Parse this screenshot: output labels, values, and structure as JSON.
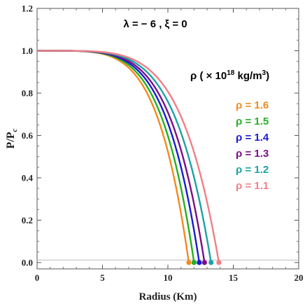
{
  "chart_data": {
    "type": "line",
    "title": "",
    "annotation": "λ = − 6 , ξ = 0",
    "xlabel": "Radius (Km)",
    "ylabel": "P/P",
    "ylabel_sub": "c",
    "xlim": [
      0,
      20
    ],
    "ylim": [
      -0.03,
      1.2
    ],
    "xticks": [
      "0",
      "5",
      "10",
      "15",
      "20"
    ],
    "yticks": [
      "0.0",
      "0.2",
      "0.4",
      "0.6",
      "0.8",
      "1.0",
      "1.2"
    ],
    "legend_title": "ρ ( × 10",
    "legend_title_exp": "18",
    "legend_title_unit": " kg/m",
    "legend_title_unit_exp": "3",
    "legend_title_close": ")",
    "legend_placement": "right",
    "grid": false,
    "series": [
      {
        "name": "ρ = 1.6",
        "color": "#f28a1f",
        "radius": 11.6
      },
      {
        "name": "ρ = 1.5",
        "color": "#24b024",
        "radius": 12.0
      },
      {
        "name": "ρ = 1.4",
        "color": "#1a1ad6",
        "radius": 12.4
      },
      {
        "name": "ρ = 1.3",
        "color": "#7a0f86",
        "radius": 12.8
      },
      {
        "name": "ρ = 1.2",
        "color": "#1aa3a3",
        "radius": 13.3
      },
      {
        "name": "ρ = 1.1",
        "color": "#f07f86",
        "radius": 13.9
      }
    ]
  }
}
